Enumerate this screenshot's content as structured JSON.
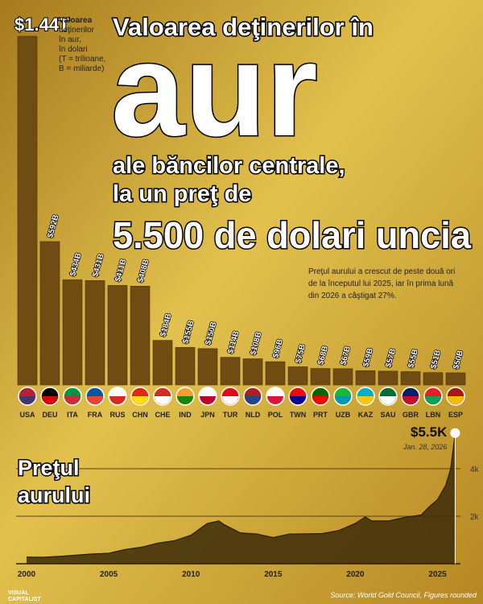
{
  "header": {
    "title": [
      "Valoarea deţinerilor în",
      "aur",
      "ale băncilor centrale,",
      "la un preţ de",
      "5.500 de dolari uncia"
    ]
  },
  "chart_data": [
    {
      "type": "bar",
      "note": [
        "Valoarea",
        "deţinerilor",
        "în aur,",
        "în dolari",
        "(T = trilioane,",
        "B = miliarde)"
      ],
      "subnote": [
        "Preţul aurului a crescut de peste două ori",
        "de la începutul lui 2025, iar în prima lună",
        "din 2026 a câştigat 27%."
      ],
      "categories": [
        "USA",
        "DEU",
        "ITA",
        "FRA",
        "RUS",
        "CHN",
        "CHE",
        "IND",
        "JPN",
        "TUR",
        "NLD",
        "POL",
        "TWN",
        "PRT",
        "UZB",
        "KAZ",
        "SAU",
        "GBR",
        "LBN",
        "ESP"
      ],
      "values": [
        1440,
        592,
        434,
        431,
        411,
        408,
        184,
        155,
        150,
        114,
        108,
        96,
        75,
        68,
        67,
        59,
        57,
        55,
        51,
        50
      ],
      "value_labels": [
        "$1.44T",
        "$592B",
        "$434B",
        "$431B",
        "$411B",
        "$408B",
        "$184B",
        "$155B",
        "$150B",
        "$114B",
        "$108B",
        "$96B",
        "$75B",
        "$68B",
        "$67B",
        "$59B",
        "$57B",
        "$55B",
        "$51B",
        "$50B"
      ],
      "color": "#6e4c12"
    },
    {
      "type": "area",
      "title": [
        "Preţul",
        "aurului"
      ],
      "x": [
        2000,
        2001,
        2002,
        2003,
        2004,
        2005,
        2006,
        2007,
        2008,
        2009,
        2010,
        2011,
        2011.7,
        2012,
        2013,
        2014,
        2015,
        2016,
        2017,
        2018,
        2019,
        2020,
        2020.6,
        2021,
        2022,
        2023,
        2024,
        2024.5,
        2025,
        2025.5,
        2025.8,
        2026.07
      ],
      "values": [
        280,
        270,
        310,
        360,
        410,
        440,
        600,
        700,
        870,
        970,
        1200,
        1700,
        1800,
        1650,
        1300,
        1250,
        1100,
        1250,
        1260,
        1270,
        1400,
        1700,
        1970,
        1800,
        1800,
        1950,
        2050,
        2400,
        2700,
        3300,
        4000,
        5500
      ],
      "color": "#3d2a08",
      "xlim": [
        2000,
        2026.1
      ],
      "ylim": [
        0,
        6000
      ],
      "xticks": [
        2000,
        2005,
        2010,
        2015,
        2020,
        2025
      ],
      "yticks": [
        {
          "value": 2000,
          "label": "2k"
        },
        {
          "value": 4000,
          "label": "4k"
        }
      ],
      "annotations": [
        "$5.5K",
        "Jan. 28, 2026"
      ]
    }
  ],
  "source": "Source: World Gold Council, Figures rounded",
  "brand": [
    "VISUAL",
    "CAPITALIST"
  ]
}
